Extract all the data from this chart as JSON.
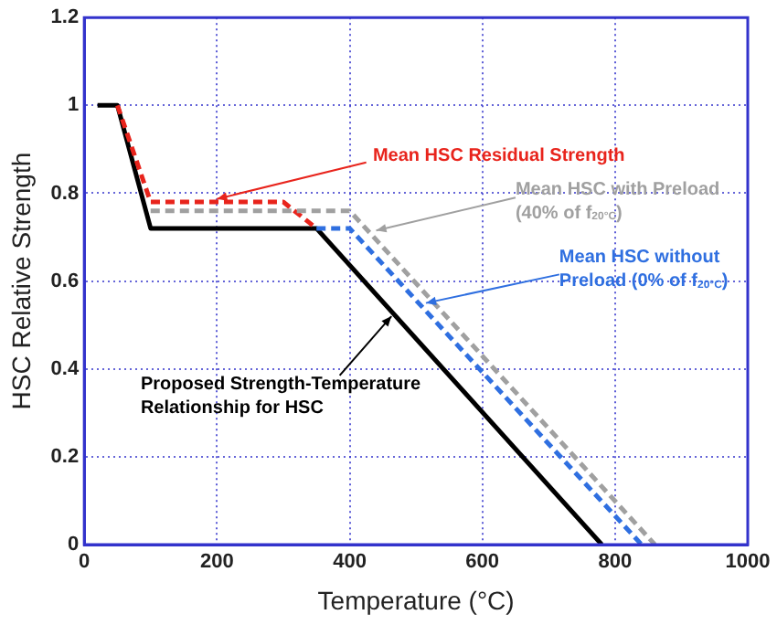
{
  "chart_data": {
    "type": "line",
    "xlabel": "Temperature (°C)",
    "ylabel": "HSC Relative Strength",
    "xlim": [
      0,
      1000
    ],
    "ylim": [
      0,
      1.2
    ],
    "xticks": [
      0,
      200,
      400,
      600,
      800,
      1000
    ],
    "yticks": [
      0,
      0.2,
      0.4,
      0.6,
      0.8,
      1,
      1.2
    ],
    "grid": true,
    "legend": false,
    "marker": "none",
    "series": [
      {
        "name": "Proposed Strength-Temperature Relationship for HSC",
        "color": "#000000",
        "line_style": "solid",
        "x": [
          20,
          50,
          100,
          350,
          780
        ],
        "values": [
          1,
          1,
          0.72,
          0.72,
          0
        ]
      },
      {
        "name": "Mean HSC Residual Strength",
        "color": "#e8241c",
        "line_style": "dashed",
        "x": [
          50,
          100,
          300,
          350
        ],
        "values": [
          1,
          0.78,
          0.78,
          0.72
        ]
      },
      {
        "name": "Mean HSC with Preload (40% of f$_{20°C}$)",
        "color": "#a0a0a0",
        "line_style": "dashed",
        "x": [
          100,
          400,
          860
        ],
        "values": [
          0.76,
          0.76,
          0
        ]
      },
      {
        "name": "Mean HSC without Preload (0% of f$_{20°C}$)",
        "color": "#2f6fe0",
        "line_style": "dashed",
        "x": [
          350,
          400,
          840
        ],
        "values": [
          0.72,
          0.72,
          0
        ]
      }
    ]
  }
}
